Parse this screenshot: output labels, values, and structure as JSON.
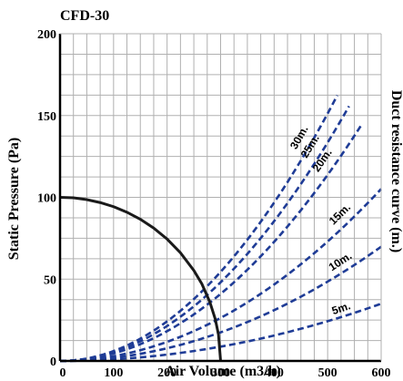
{
  "chart_data": {
    "type": "line",
    "title": "CFD-30",
    "xlabel": "Air Volume (m3/h)",
    "ylabel": "Static Pressure (Pa)",
    "right_label": "Duct resistance curve (m.)",
    "xlim": [
      0,
      600
    ],
    "ylim": [
      0,
      200
    ],
    "x_ticks": [
      0,
      100,
      200,
      300,
      400,
      500,
      600
    ],
    "y_ticks": [
      0,
      50,
      100,
      150,
      200
    ],
    "grid": true,
    "fan_curve": {
      "color": "#1a1a1a",
      "points": [
        [
          0,
          100
        ],
        [
          25,
          99.7
        ],
        [
          50,
          98.6
        ],
        [
          75,
          96.8
        ],
        [
          100,
          94.3
        ],
        [
          125,
          90.9
        ],
        [
          150,
          86.6
        ],
        [
          175,
          81.2
        ],
        [
          200,
          74.5
        ],
        [
          225,
          66.1
        ],
        [
          250,
          55.3
        ],
        [
          265,
          47.1
        ],
        [
          280,
          35.9
        ],
        [
          290,
          25.6
        ],
        [
          296,
          16.2
        ],
        [
          300,
          0
        ]
      ]
    },
    "duct_curves": [
      {
        "label": "5m.",
        "k": 9.72e-05,
        "x_end": 600
      },
      {
        "label": "10m.",
        "k": 0.000194,
        "x_end": 600
      },
      {
        "label": "15m.",
        "k": 0.000292,
        "x_end": 600
      },
      {
        "label": "20m.",
        "k": 0.000455,
        "x_end": 565
      },
      {
        "label": "25m.",
        "k": 0.000534,
        "x_end": 540
      },
      {
        "label": "30m.",
        "k": 0.000605,
        "x_end": 518
      }
    ],
    "duct_color": "#1f3c96"
  }
}
